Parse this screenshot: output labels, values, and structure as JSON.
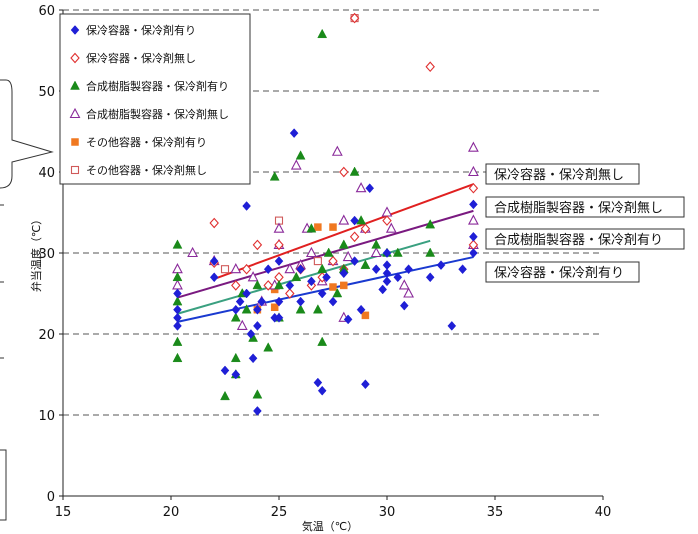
{
  "chart_data": {
    "type": "scatter",
    "title": "",
    "xlabel": "気温（℃）",
    "ylabel": "弁当温度（℃）",
    "xlim": [
      15,
      40
    ],
    "ylim": [
      0,
      60
    ],
    "xticks": [
      15,
      20,
      25,
      30,
      35,
      40
    ],
    "yticks": [
      0,
      10,
      20,
      30,
      40,
      50,
      60
    ],
    "grid": "horizontal dashed",
    "legend_position": "top-left",
    "series": [
      {
        "name": "保冷容器・保冷剤有り",
        "marker": "diamond-filled",
        "color": "#1f1fd6",
        "points": [
          [
            20.3,
            21
          ],
          [
            20.3,
            22
          ],
          [
            20.3,
            23
          ],
          [
            20.3,
            25
          ],
          [
            22,
            27
          ],
          [
            22,
            29
          ],
          [
            22.5,
            15.5
          ],
          [
            23,
            15
          ],
          [
            23,
            23
          ],
          [
            23.2,
            24
          ],
          [
            23.5,
            35.8
          ],
          [
            23.5,
            25
          ],
          [
            23.7,
            20
          ],
          [
            23.8,
            17
          ],
          [
            24,
            23
          ],
          [
            24,
            21
          ],
          [
            24,
            10.5
          ],
          [
            24.2,
            24
          ],
          [
            24.5,
            28
          ],
          [
            24.8,
            22
          ],
          [
            25,
            29
          ],
          [
            25,
            24
          ],
          [
            25,
            22
          ],
          [
            25.5,
            26
          ],
          [
            25.7,
            44.8
          ],
          [
            26,
            24
          ],
          [
            26,
            28
          ],
          [
            26.5,
            26.5
          ],
          [
            26.8,
            14
          ],
          [
            27,
            13
          ],
          [
            27,
            25
          ],
          [
            27.2,
            27
          ],
          [
            27.5,
            24
          ],
          [
            28,
            27.5
          ],
          [
            28.2,
            21.8
          ],
          [
            28.5,
            34
          ],
          [
            28.5,
            29
          ],
          [
            28.8,
            23
          ],
          [
            29,
            13.8
          ],
          [
            29.2,
            38
          ],
          [
            29.5,
            28
          ],
          [
            29.8,
            25.5
          ],
          [
            30,
            26.5
          ],
          [
            30,
            27.5
          ],
          [
            30,
            28.5
          ],
          [
            30,
            30
          ],
          [
            30.5,
            27
          ],
          [
            30.8,
            23.5
          ],
          [
            31,
            28
          ],
          [
            32,
            27
          ],
          [
            32.5,
            28.5
          ],
          [
            33,
            21
          ],
          [
            33.5,
            28
          ],
          [
            34,
            36
          ],
          [
            34,
            30
          ],
          [
            34,
            32
          ]
        ]
      },
      {
        "name": "保冷容器・保冷剤無し",
        "marker": "diamond-open",
        "color": "#e03030",
        "points": [
          [
            22,
            33.7
          ],
          [
            22,
            28.8
          ],
          [
            23,
            26
          ],
          [
            23.5,
            28
          ],
          [
            24,
            31
          ],
          [
            24.5,
            26
          ],
          [
            25,
            27
          ],
          [
            25,
            31
          ],
          [
            25.5,
            25
          ],
          [
            26,
            28
          ],
          [
            26.5,
            26
          ],
          [
            27,
            27
          ],
          [
            27.5,
            29
          ],
          [
            28,
            28
          ],
          [
            28,
            40
          ],
          [
            28.5,
            32
          ],
          [
            28.5,
            59
          ],
          [
            29,
            33
          ],
          [
            30,
            34
          ],
          [
            32,
            53
          ],
          [
            34,
            38
          ],
          [
            34,
            31
          ]
        ]
      },
      {
        "name": "合成樹脂製容器・保冷剤有り",
        "marker": "triangle-filled",
        "color": "#1a8a1a",
        "points": [
          [
            20.3,
            31
          ],
          [
            20.3,
            27
          ],
          [
            20.3,
            24
          ],
          [
            20.3,
            19
          ],
          [
            20.3,
            17
          ],
          [
            22.5,
            12.3
          ],
          [
            23,
            17
          ],
          [
            23,
            15
          ],
          [
            23,
            22
          ],
          [
            23.3,
            25
          ],
          [
            23.5,
            23
          ],
          [
            23.8,
            19.5
          ],
          [
            24,
            12.5
          ],
          [
            24,
            26
          ],
          [
            24.5,
            18.3
          ],
          [
            24.8,
            39.4
          ],
          [
            25,
            26
          ],
          [
            25,
            22
          ],
          [
            25.8,
            27
          ],
          [
            26,
            42
          ],
          [
            26,
            23
          ],
          [
            26.5,
            33
          ],
          [
            26.8,
            23
          ],
          [
            27,
            57
          ],
          [
            27,
            19
          ],
          [
            27,
            28
          ],
          [
            27.3,
            30
          ],
          [
            27.7,
            25
          ],
          [
            28,
            28
          ],
          [
            28,
            31
          ],
          [
            28.5,
            40
          ],
          [
            28.8,
            34
          ],
          [
            29,
            28.5
          ],
          [
            29.5,
            31
          ],
          [
            30,
            30
          ],
          [
            30.5,
            30
          ],
          [
            32,
            30
          ],
          [
            32,
            33.5
          ]
        ]
      },
      {
        "name": "合成樹脂製容器・保冷剤無し",
        "marker": "triangle-open",
        "color": "#8a2a9a",
        "points": [
          [
            20.3,
            28
          ],
          [
            20.3,
            26
          ],
          [
            21,
            30
          ],
          [
            22,
            29
          ],
          [
            23,
            28
          ],
          [
            23.3,
            21
          ],
          [
            23.8,
            27
          ],
          [
            24.2,
            24
          ],
          [
            24.8,
            26
          ],
          [
            25,
            33
          ],
          [
            25,
            31
          ],
          [
            25.5,
            28
          ],
          [
            25.8,
            40.8
          ],
          [
            26,
            28.5
          ],
          [
            26.3,
            33
          ],
          [
            26.5,
            30
          ],
          [
            27,
            26.5
          ],
          [
            27.5,
            29
          ],
          [
            27.7,
            42.5
          ],
          [
            28,
            22
          ],
          [
            28,
            34
          ],
          [
            28.2,
            29.5
          ],
          [
            28.8,
            38
          ],
          [
            29,
            33
          ],
          [
            29.5,
            30
          ],
          [
            30,
            35
          ],
          [
            30.2,
            33
          ],
          [
            30.8,
            26
          ],
          [
            31,
            25
          ],
          [
            34,
            43
          ],
          [
            34,
            40
          ],
          [
            34,
            34
          ],
          [
            34,
            31
          ]
        ]
      },
      {
        "name": "その他容器・保冷剤有り",
        "marker": "square-filled",
        "color": "#f07820",
        "points": [
          [
            24,
            23
          ],
          [
            24.8,
            25.5
          ],
          [
            24.8,
            23.3
          ],
          [
            26.8,
            33.2
          ],
          [
            27.5,
            25.8
          ],
          [
            27.5,
            33.2
          ],
          [
            28,
            26
          ],
          [
            29,
            22.3
          ]
        ]
      },
      {
        "name": "その他容器・保冷剤無し",
        "marker": "square-open",
        "color": "#d05a5a",
        "points": [
          [
            22.5,
            28
          ],
          [
            25,
            34
          ],
          [
            26.8,
            29
          ],
          [
            28.5,
            59
          ]
        ]
      }
    ],
    "trendlines": [
      {
        "label": "保冷容器・保冷剤無し",
        "color": "#e02020",
        "x": [
          22,
          34
        ],
        "y": [
          26.8,
          38.5
        ]
      },
      {
        "label": "合成樹脂製容器・保冷剤無し",
        "color": "#7a1a80",
        "x": [
          20.3,
          34
        ],
        "y": [
          24.5,
          35.2
        ]
      },
      {
        "label": "合成樹脂製容器・保冷剤有り",
        "color": "#3aa080",
        "x": [
          20.3,
          32
        ],
        "y": [
          22.5,
          31.5
        ]
      },
      {
        "label": "保冷容器・保冷剤有り",
        "color": "#1a3ad0",
        "x": [
          20.3,
          34
        ],
        "y": [
          21.5,
          29.5
        ]
      }
    ]
  }
}
